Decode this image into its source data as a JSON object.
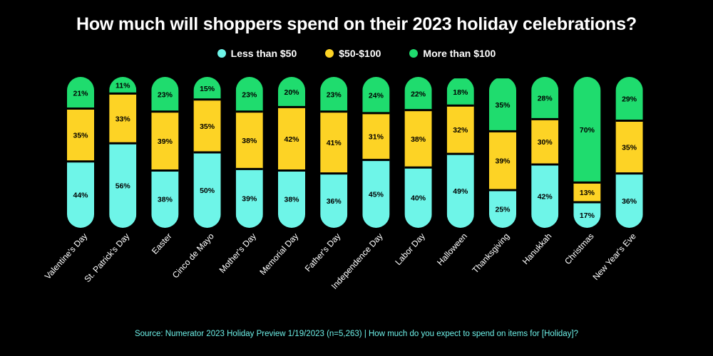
{
  "chart_data": {
    "type": "bar",
    "stacked": true,
    "orientation": "vertical",
    "title": "How much will shoppers spend on their 2023 holiday celebrations?",
    "categories": [
      "Valentine's Day",
      "St. Patrick's Day",
      "Easter",
      "Cinco de Mayo",
      "Mother's Day",
      "Memorial Day",
      "Father's Day",
      "Independence Day",
      "Labor Day",
      "Halloween",
      "Thanksgiving",
      "Hanukkah",
      "Christmas",
      "New Year's Eve"
    ],
    "series": [
      {
        "name": "Less than $50",
        "color": "#6ef5e8",
        "values": [
          44,
          56,
          38,
          50,
          39,
          38,
          36,
          45,
          40,
          49,
          25,
          42,
          17,
          36
        ]
      },
      {
        "name": "$50-$100",
        "color": "#fdd325",
        "values": [
          35,
          33,
          39,
          35,
          38,
          42,
          41,
          31,
          38,
          32,
          39,
          30,
          13,
          35
        ]
      },
      {
        "name": "More than $100",
        "color": "#1fdc6e",
        "values": [
          21,
          11,
          23,
          15,
          23,
          20,
          23,
          24,
          22,
          18,
          35,
          28,
          70,
          29
        ]
      }
    ],
    "value_suffix": "%",
    "ylim": [
      0,
      100
    ],
    "legend_position": "top-center",
    "grid": false,
    "source": "Source: Numerator 2023 Holiday Preview 1/19/2023 (n=5,263) | How much do you expect to spend on items for [Holiday]?"
  }
}
